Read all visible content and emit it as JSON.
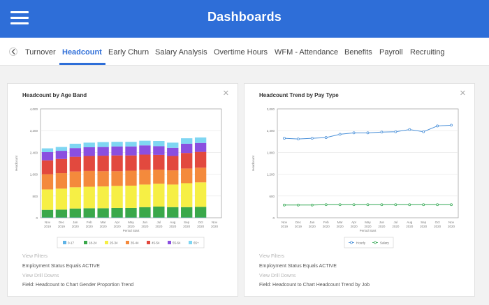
{
  "app": {
    "title": "Dashboards"
  },
  "tabs": [
    "Turnover",
    "Headcount",
    "Early Churn",
    "Salary Analysis",
    "Overtime Hours",
    "WFM - Attendance",
    "Benefits",
    "Payroll",
    "Recruiting"
  ],
  "active_tab": "Headcount",
  "cards": [
    {
      "title": "Headcount by Age Band",
      "close": "✕",
      "view_filters": "View Filters",
      "filter": "Employment Status Equals ACTIVE",
      "view_drill": "View Drill Downs",
      "field": "Field: Headcount to Chart Gender Proportion Trend"
    },
    {
      "title": "Headcount Trend by Pay Type",
      "close": "✕",
      "view_filters": "View Filters",
      "filter": "Employment Status Equals ACTIVE",
      "view_drill": "View Drill Downs",
      "field": "Field: Headcount  to Chart Headcount Trend by Job"
    }
  ],
  "colors": {
    "brand": "#2e6ed8",
    "age_bands": [
      "#5fb3e6",
      "#3aa84a",
      "#f6ef45",
      "#f48a3c",
      "#e2493e",
      "#8a4fe0",
      "#7fd6f2"
    ],
    "hourly": "#4a90d9",
    "salary": "#34a853"
  },
  "chart_data": [
    {
      "type": "bar",
      "stacked": true,
      "xlabel": "Period Start",
      "ylabel": "Headcount",
      "ylim": [
        0,
        4000
      ],
      "yticks": [
        "0",
        "800",
        "1,600",
        "2,400",
        "3,200",
        "4,000"
      ],
      "categories": [
        [
          "Nov",
          "2019"
        ],
        [
          "Dec",
          "2019"
        ],
        [
          "Jan",
          "2020"
        ],
        [
          "Feb",
          "2020"
        ],
        [
          "Mar",
          "2020"
        ],
        [
          "Apr",
          "2020"
        ],
        [
          "May",
          "2020"
        ],
        [
          "Jun",
          "2020"
        ],
        [
          "Jul",
          "2020"
        ],
        [
          "Aug",
          "2020"
        ],
        [
          "Sep",
          "2020"
        ],
        [
          "Oct",
          "2020"
        ],
        [
          "Nov",
          "2020"
        ]
      ],
      "series": [
        {
          "name": "0-17",
          "values": [
            10,
            10,
            10,
            10,
            10,
            10,
            10,
            10,
            10,
            10,
            10,
            10,
            0
          ]
        },
        {
          "name": "18-24",
          "values": [
            280,
            290,
            330,
            340,
            340,
            350,
            350,
            380,
            400,
            380,
            380,
            390,
            0
          ]
        },
        {
          "name": "25-34",
          "values": [
            750,
            770,
            780,
            790,
            800,
            810,
            820,
            830,
            840,
            830,
            880,
            900,
            0
          ]
        },
        {
          "name": "35-44",
          "values": [
            560,
            570,
            580,
            580,
            560,
            540,
            550,
            540,
            520,
            520,
            540,
            540,
            0
          ]
        },
        {
          "name": "45-54",
          "values": [
            510,
            520,
            540,
            550,
            570,
            580,
            560,
            560,
            540,
            530,
            570,
            580,
            0
          ]
        },
        {
          "name": "55-64",
          "values": [
            300,
            300,
            320,
            320,
            320,
            330,
            330,
            340,
            320,
            300,
            340,
            330,
            0
          ]
        },
        {
          "name": "65+",
          "values": [
            140,
            140,
            160,
            170,
            180,
            170,
            170,
            170,
            190,
            190,
            200,
            200,
            0
          ]
        }
      ]
    },
    {
      "type": "line",
      "xlabel": "Period Start",
      "ylabel": "Headcount",
      "ylim": [
        0,
        3000
      ],
      "yticks": [
        "0",
        "600",
        "1,200",
        "1,800",
        "2,400",
        "3,000"
      ],
      "categories": [
        [
          "Nov",
          "2019"
        ],
        [
          "Dec",
          "2019"
        ],
        [
          "Jan",
          "2020"
        ],
        [
          "Feb",
          "2020"
        ],
        [
          "Mar",
          "2020"
        ],
        [
          "Apr",
          "2020"
        ],
        [
          "May",
          "2020"
        ],
        [
          "Jun",
          "2020"
        ],
        [
          "Jul",
          "2020"
        ],
        [
          "Aug",
          "2020"
        ],
        [
          "Sep",
          "2020"
        ],
        [
          "Oct",
          "2020"
        ],
        [
          "Nov",
          "2020"
        ]
      ],
      "series": [
        {
          "name": "Hourly",
          "values": [
            2190,
            2170,
            2190,
            2210,
            2300,
            2340,
            2340,
            2360,
            2370,
            2430,
            2370,
            2530,
            2550
          ]
        },
        {
          "name": "Salary",
          "values": [
            350,
            350,
            350,
            360,
            360,
            360,
            360,
            360,
            360,
            360,
            360,
            360,
            360
          ]
        }
      ]
    }
  ]
}
